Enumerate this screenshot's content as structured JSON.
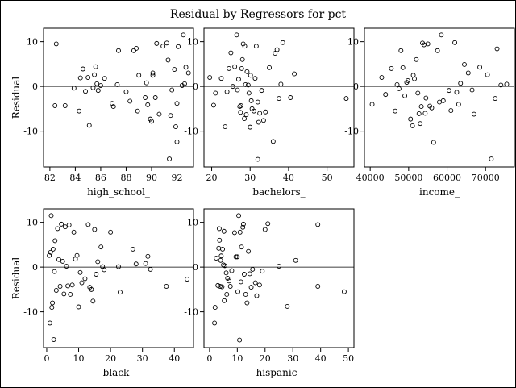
{
  "title": "Residual by Regressors for pct",
  "chart_data": [
    {
      "type": "scatter",
      "xlabel": "high_school_",
      "ylabel": "Residual",
      "xlim": [
        81.5,
        93.3
      ],
      "ylim": [
        -18,
        13
      ],
      "xticks": [
        82,
        84,
        86,
        88,
        90,
        92
      ],
      "yticks": [
        -10,
        0,
        10
      ],
      "reference_line": 0,
      "points": [
        [
          82.5,
          9.5
        ],
        [
          82.4,
          -4.3
        ],
        [
          83.2,
          -4.3
        ],
        [
          83.9,
          -0.4
        ],
        [
          84.3,
          -5.5
        ],
        [
          84.4,
          1.9
        ],
        [
          84.6,
          3.9
        ],
        [
          84.8,
          -1.1
        ],
        [
          85.0,
          2.0
        ],
        [
          85.1,
          -8.7
        ],
        [
          85.4,
          -0.3
        ],
        [
          85.5,
          2.6
        ],
        [
          85.6,
          4.4
        ],
        [
          85.7,
          0.6
        ],
        [
          85.8,
          -0.9
        ],
        [
          86.0,
          0.2
        ],
        [
          86.3,
          1.8
        ],
        [
          86.9,
          -3.8
        ],
        [
          87.0,
          -4.5
        ],
        [
          87.3,
          0.4
        ],
        [
          87.4,
          8.0
        ],
        [
          88.0,
          -1.2
        ],
        [
          88.3,
          -3.3
        ],
        [
          88.6,
          8.0
        ],
        [
          88.8,
          8.5
        ],
        [
          88.9,
          -5.5
        ],
        [
          89.0,
          2.5
        ],
        [
          89.5,
          -2.5
        ],
        [
          89.6,
          0.8
        ],
        [
          89.7,
          -4.1
        ],
        [
          89.9,
          -7.3
        ],
        [
          90.0,
          -7.8
        ],
        [
          90.1,
          3.0
        ],
        [
          90.1,
          2.5
        ],
        [
          90.3,
          -2.5
        ],
        [
          90.4,
          9.6
        ],
        [
          90.6,
          -6.2
        ],
        [
          90.9,
          9.0
        ],
        [
          91.2,
          9.7
        ],
        [
          91.3,
          5.9
        ],
        [
          91.4,
          -16.2
        ],
        [
          91.5,
          -6.5
        ],
        [
          91.6,
          -0.8
        ],
        [
          91.8,
          3.8
        ],
        [
          91.9,
          -9.0
        ],
        [
          92.0,
          -12.4
        ],
        [
          92.0,
          -3.8
        ],
        [
          92.1,
          8.9
        ],
        [
          92.4,
          0.2
        ],
        [
          92.5,
          11.5
        ],
        [
          92.6,
          0.6
        ],
        [
          92.7,
          4.3
        ],
        [
          92.9,
          3.0
        ]
      ]
    },
    {
      "type": "scatter",
      "xlabel": "bachelors_",
      "ylabel": "",
      "xlim": [
        18,
        57
      ],
      "ylim": [
        -18,
        13
      ],
      "xticks": [
        20,
        30,
        40,
        50
      ],
      "yticks": [
        -10,
        0,
        10
      ],
      "reference_line": 0,
      "points": [
        [
          19.5,
          2.0
        ],
        [
          20.5,
          -4.2
        ],
        [
          21.0,
          -1.5
        ],
        [
          22.5,
          1.8
        ],
        [
          23.5,
          -9.0
        ],
        [
          24.0,
          -1.2
        ],
        [
          24.5,
          4.0
        ],
        [
          25.0,
          7.5
        ],
        [
          25.5,
          0.0
        ],
        [
          26.0,
          4.4
        ],
        [
          26.5,
          11.5
        ],
        [
          26.7,
          -0.8
        ],
        [
          27.0,
          1.6
        ],
        [
          27.3,
          -4.5
        ],
        [
          27.5,
          -5.8
        ],
        [
          27.6,
          -4.3
        ],
        [
          27.8,
          4.0
        ],
        [
          28.0,
          6.0
        ],
        [
          28.2,
          9.5
        ],
        [
          28.5,
          -7.2
        ],
        [
          28.6,
          9.0
        ],
        [
          28.8,
          0.4
        ],
        [
          29.0,
          -6.3
        ],
        [
          29.2,
          3.3
        ],
        [
          29.5,
          0.3
        ],
        [
          29.7,
          -1.5
        ],
        [
          30.0,
          -9.1
        ],
        [
          30.1,
          2.5
        ],
        [
          30.3,
          -3.2
        ],
        [
          30.5,
          -5.0
        ],
        [
          31.0,
          -5.5
        ],
        [
          31.3,
          1.8
        ],
        [
          31.6,
          9.0
        ],
        [
          32.0,
          -16.3
        ],
        [
          32.0,
          -3.5
        ],
        [
          32.2,
          -8.0
        ],
        [
          32.5,
          -6.0
        ],
        [
          33.0,
          -0.9
        ],
        [
          33.5,
          -7.6
        ],
        [
          34.0,
          -5.7
        ],
        [
          35.0,
          4.2
        ],
        [
          36.0,
          -12.3
        ],
        [
          36.5,
          7.4
        ],
        [
          37.0,
          8.2
        ],
        [
          37.5,
          -2.7
        ],
        [
          38.0,
          0.5
        ],
        [
          38.5,
          9.8
        ],
        [
          40.5,
          -2.5
        ],
        [
          41.5,
          2.8
        ],
        [
          55.0,
          -2.7
        ]
      ]
    },
    {
      "type": "scatter",
      "xlabel": "income_",
      "ylabel": "",
      "xlim": [
        38500,
        77500
      ],
      "ylim": [
        -18,
        13
      ],
      "xticks": [
        40000,
        50000,
        60000,
        70000
      ],
      "yticks": [
        -10,
        0,
        10
      ],
      "reference_line": 0,
      "points": [
        [
          40500,
          -4.0
        ],
        [
          43000,
          2.0
        ],
        [
          44000,
          -1.8
        ],
        [
          45500,
          4.0
        ],
        [
          46500,
          -5.5
        ],
        [
          47000,
          0.4
        ],
        [
          47500,
          -0.5
        ],
        [
          48000,
          8.0
        ],
        [
          48500,
          4.2
        ],
        [
          49000,
          -2.1
        ],
        [
          49500,
          0.9
        ],
        [
          49800,
          1.3
        ],
        [
          50500,
          -7.3
        ],
        [
          51000,
          -8.8
        ],
        [
          51200,
          2.5
        ],
        [
          51500,
          1.7
        ],
        [
          52000,
          6.0
        ],
        [
          52400,
          -1.5
        ],
        [
          52700,
          -6.1
        ],
        [
          53000,
          -8.3
        ],
        [
          53300,
          -4.5
        ],
        [
          53600,
          9.7
        ],
        [
          54000,
          9.3
        ],
        [
          54300,
          -6.0
        ],
        [
          54500,
          -2.6
        ],
        [
          55000,
          9.5
        ],
        [
          55500,
          -4.4
        ],
        [
          56000,
          -4.8
        ],
        [
          56500,
          -12.5
        ],
        [
          57500,
          8.0
        ],
        [
          58000,
          -3.5
        ],
        [
          58500,
          11.5
        ],
        [
          59000,
          -3.2
        ],
        [
          60500,
          -0.9
        ],
        [
          61000,
          -5.4
        ],
        [
          62000,
          9.8
        ],
        [
          62500,
          -1.3
        ],
        [
          63000,
          -4.0
        ],
        [
          63500,
          0.7
        ],
        [
          64500,
          4.9
        ],
        [
          65500,
          3.0
        ],
        [
          66500,
          -0.8
        ],
        [
          67000,
          -6.2
        ],
        [
          68500,
          4.3
        ],
        [
          70500,
          2.6
        ],
        [
          71500,
          -16.2
        ],
        [
          72500,
          -2.7
        ],
        [
          73000,
          8.4
        ],
        [
          74000,
          0.3
        ],
        [
          75500,
          0.5
        ]
      ]
    },
    {
      "type": "scatter",
      "xlabel": "black_",
      "ylabel": "Residual",
      "xlim": [
        -1,
        46
      ],
      "ylim": [
        -18,
        13
      ],
      "xticks": [
        0,
        10,
        20,
        30,
        40
      ],
      "yticks": [
        -10,
        0,
        10
      ],
      "reference_line": 0,
      "points": [
        [
          0.8,
          2.6
        ],
        [
          1.0,
          -12.5
        ],
        [
          1.2,
          3.3
        ],
        [
          1.4,
          11.5
        ],
        [
          1.6,
          -9.0
        ],
        [
          1.8,
          -8.0
        ],
        [
          2.0,
          4.0
        ],
        [
          2.2,
          -16.2
        ],
        [
          2.4,
          -1.0
        ],
        [
          2.6,
          5.9
        ],
        [
          3.0,
          -5.2
        ],
        [
          3.4,
          8.6
        ],
        [
          3.8,
          1.7
        ],
        [
          4.2,
          -4.3
        ],
        [
          4.6,
          9.6
        ],
        [
          5.0,
          1.3
        ],
        [
          5.4,
          -6.0
        ],
        [
          5.8,
          9.0
        ],
        [
          6.2,
          0.2
        ],
        [
          6.6,
          -4.2
        ],
        [
          7.0,
          9.4
        ],
        [
          7.4,
          -6.1
        ],
        [
          8.0,
          -4.0
        ],
        [
          8.5,
          7.8
        ],
        [
          9.0,
          1.8
        ],
        [
          9.5,
          2.6
        ],
        [
          10.0,
          -8.9
        ],
        [
          10.5,
          -1.2
        ],
        [
          11.0,
          -3.5
        ],
        [
          12.0,
          -2.6
        ],
        [
          13.0,
          9.5
        ],
        [
          13.5,
          -4.5
        ],
        [
          14.0,
          -5.0
        ],
        [
          14.5,
          -7.6
        ],
        [
          15.0,
          8.4
        ],
        [
          15.5,
          -1.6
        ],
        [
          16.0,
          1.2
        ],
        [
          17.0,
          4.5
        ],
        [
          17.5,
          0.1
        ],
        [
          18.0,
          -0.6
        ],
        [
          20.0,
          7.8
        ],
        [
          22.5,
          0.1
        ],
        [
          23.0,
          -5.6
        ],
        [
          27.0,
          4.0
        ],
        [
          28.0,
          0.7
        ],
        [
          31.0,
          0.8
        ],
        [
          31.7,
          2.4
        ],
        [
          32.5,
          -0.5
        ],
        [
          37.5,
          -4.3
        ],
        [
          44.0,
          -2.7
        ]
      ]
    },
    {
      "type": "scatter",
      "xlabel": "hispanic_",
      "ylabel": "",
      "xlim": [
        -2,
        52
      ],
      "ylim": [
        -18,
        13
      ],
      "xticks": [
        0,
        10,
        20,
        30,
        40,
        50
      ],
      "yticks": [
        -10,
        0,
        10
      ],
      "reference_line": 0,
      "points": [
        [
          1.8,
          -12.5
        ],
        [
          2.0,
          -9.0
        ],
        [
          2.4,
          2.0
        ],
        [
          3.0,
          -4.1
        ],
        [
          3.3,
          4.2
        ],
        [
          3.5,
          8.6
        ],
        [
          3.6,
          6.0
        ],
        [
          3.8,
          -4.3
        ],
        [
          4.0,
          1.5
        ],
        [
          4.2,
          2.5
        ],
        [
          4.5,
          -4.4
        ],
        [
          4.7,
          4.0
        ],
        [
          5.0,
          0.5
        ],
        [
          5.2,
          8.0
        ],
        [
          5.3,
          -7.5
        ],
        [
          5.5,
          0.3
        ],
        [
          6.0,
          -1.3
        ],
        [
          6.2,
          -6.1
        ],
        [
          6.5,
          -2.5
        ],
        [
          7.0,
          -3.1
        ],
        [
          7.5,
          -4.3
        ],
        [
          8.0,
          -0.8
        ],
        [
          9.0,
          7.7
        ],
        [
          9.5,
          2.3
        ],
        [
          10.0,
          2.3
        ],
        [
          10.2,
          -5.5
        ],
        [
          10.5,
          11.5
        ],
        [
          10.8,
          -16.3
        ],
        [
          11.0,
          7.8
        ],
        [
          11.3,
          -3.3
        ],
        [
          11.5,
          4.5
        ],
        [
          12.0,
          8.9
        ],
        [
          12.2,
          9.6
        ],
        [
          12.5,
          -1.6
        ],
        [
          13.0,
          -6.1
        ],
        [
          13.5,
          -8.0
        ],
        [
          14.0,
          3.5
        ],
        [
          14.5,
          -1.5
        ],
        [
          15.0,
          -4.5
        ],
        [
          15.5,
          -0.5
        ],
        [
          16.5,
          -3.5
        ],
        [
          17.0,
          -6.4
        ],
        [
          18.0,
          -4.0
        ],
        [
          19.0,
          -0.9
        ],
        [
          20.0,
          8.4
        ],
        [
          21.0,
          9.7
        ],
        [
          25.0,
          0.2
        ],
        [
          28.0,
          -8.8
        ],
        [
          31.0,
          1.5
        ],
        [
          39.0,
          9.5
        ],
        [
          39.0,
          -4.3
        ],
        [
          48.5,
          -5.5
        ]
      ]
    }
  ]
}
